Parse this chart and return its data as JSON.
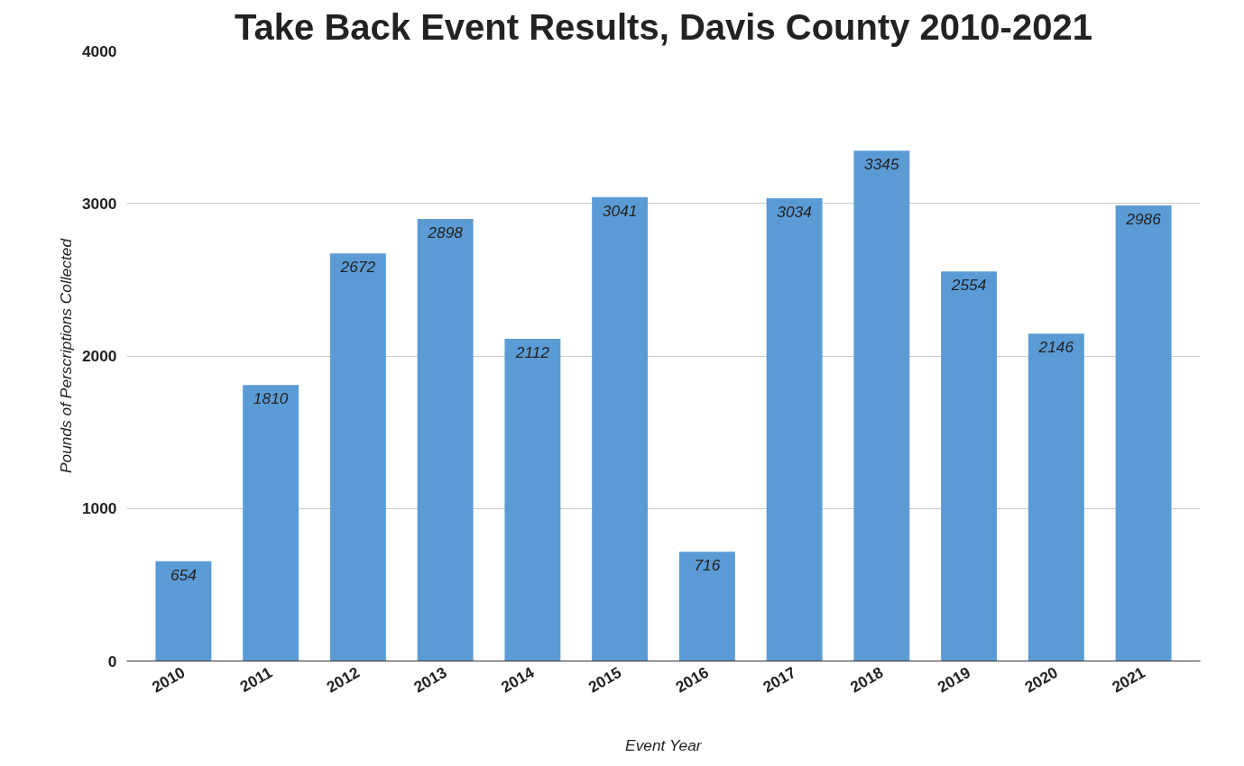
{
  "chart_data": {
    "type": "bar",
    "title": "Take Back Event Results, Davis County 2010-2021",
    "xlabel": "Event Year",
    "ylabel": "Pounds of Perscriptions Collected",
    "categories": [
      "2010",
      "2011",
      "2012",
      "2013",
      "2014",
      "2015",
      "2016",
      "2017",
      "2018",
      "2019",
      "2020",
      "2021"
    ],
    "values": [
      654,
      1810,
      2672,
      2898,
      2112,
      3041,
      716,
      3034,
      3345,
      2554,
      2146,
      2986
    ],
    "color": "#5b9bd5",
    "ylim": [
      0,
      4000
    ],
    "yticks": [
      0,
      1000,
      2000,
      3000,
      4000
    ],
    "grid": "y",
    "data_labels": true
  }
}
